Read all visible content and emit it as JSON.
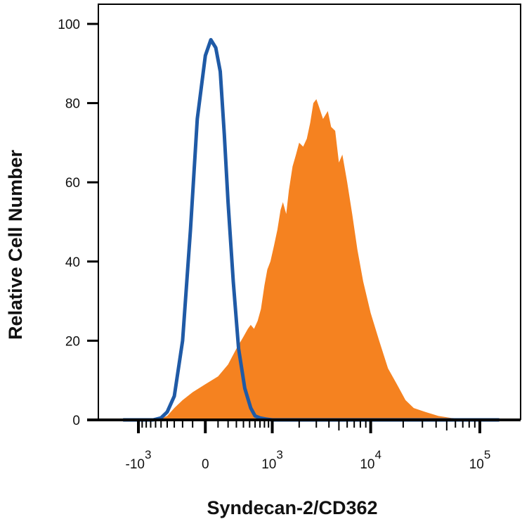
{
  "chart_data": {
    "type": "area",
    "title": "",
    "xlabel": "Syndecan-2/CD362",
    "ylabel": "Relative Cell Number",
    "xscale": "biexponential",
    "ylim": [
      0,
      100
    ],
    "grid": false,
    "legend": "none",
    "y_ticks": [
      {
        "value": 0,
        "label": "0"
      },
      {
        "value": 20,
        "label": "20"
      },
      {
        "value": 40,
        "label": "40"
      },
      {
        "value": 60,
        "label": "60"
      },
      {
        "value": 80,
        "label": "80"
      },
      {
        "value": 100,
        "label": "100"
      }
    ],
    "x_ticks": [
      {
        "value": -1000,
        "base": "-10",
        "exp": "3"
      },
      {
        "value": 0,
        "base": "0",
        "exp": ""
      },
      {
        "value": 1000,
        "base": "10",
        "exp": "3"
      },
      {
        "value": 10000,
        "base": "10",
        "exp": "4"
      },
      {
        "value": 100000,
        "base": "10",
        "exp": "5"
      }
    ],
    "series": [
      {
        "style": "outline",
        "color": "#1f5aa6",
        "x": [
          -1500,
          -650,
          -500,
          -400,
          -300,
          -200,
          -120,
          -60,
          0,
          40,
          80,
          120,
          160,
          200,
          260,
          330,
          420,
          520,
          600,
          700,
          850,
          1000,
          2000,
          10000,
          150000
        ],
        "y": [
          0,
          0,
          0.5,
          2,
          6,
          20,
          48,
          76,
          92,
          96,
          94,
          88,
          72,
          55,
          35,
          18,
          8,
          3,
          1,
          0.5,
          0.2,
          0,
          0,
          0,
          0
        ]
      },
      {
        "style": "filled",
        "color": "#f58220",
        "x": [
          -1500,
          -550,
          -400,
          -300,
          -200,
          -100,
          0,
          100,
          200,
          300,
          400,
          470,
          520,
          580,
          650,
          720,
          800,
          870,
          950,
          1050,
          1150,
          1250,
          1330,
          1450,
          1550,
          1700,
          1850,
          2000,
          2200,
          2400,
          2600,
          2800,
          3000,
          3200,
          3500,
          3900,
          4200,
          4600,
          5000,
          5400,
          6000,
          6700,
          7500,
          8500,
          10000,
          12000,
          14500,
          17500,
          21000,
          25000,
          32000,
          42000,
          55000,
          72000,
          100000,
          150000
        ],
        "y": [
          0,
          0,
          1,
          3,
          5,
          7,
          9,
          11,
          14,
          18,
          21,
          23,
          24,
          23,
          25,
          28,
          34,
          38,
          40,
          44,
          48,
          53,
          55,
          52,
          58,
          64,
          67,
          70,
          69,
          71,
          75,
          80,
          81,
          79,
          76,
          78,
          74,
          73,
          65,
          67,
          60,
          52,
          43,
          35,
          27,
          20,
          13,
          9,
          5,
          3,
          2,
          1,
          0.5,
          0.3,
          0,
          0
        ]
      }
    ]
  }
}
